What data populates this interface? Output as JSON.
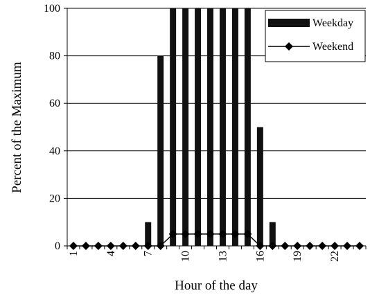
{
  "chart_data": {
    "type": "bar",
    "x_label": "Hour of the day",
    "y_label": "Percent of the Maximum",
    "categories": [
      1,
      null,
      null,
      4,
      null,
      null,
      7,
      null,
      null,
      10,
      null,
      null,
      13,
      null,
      null,
      16,
      null,
      null,
      19,
      null,
      null,
      22,
      null,
      null
    ],
    "series": [
      {
        "name": "Weekday",
        "type": "bar",
        "color": "#111111",
        "values": [
          0,
          0,
          0,
          0,
          0,
          0,
          10,
          80,
          100,
          100,
          100,
          100,
          100,
          100,
          100,
          50,
          10,
          0,
          0,
          0,
          0,
          0,
          0,
          0
        ]
      },
      {
        "name": "Weekend",
        "type": "line",
        "color": "#000000",
        "values": [
          0,
          0,
          0,
          0,
          0,
          0,
          0,
          0,
          5,
          5,
          5,
          5,
          5,
          5,
          5,
          0,
          0,
          0,
          0,
          0,
          0,
          0,
          0,
          0
        ]
      }
    ],
    "ylim": [
      0,
      100
    ],
    "yticks": [
      0,
      20,
      40,
      60,
      80,
      100
    ],
    "grid": true,
    "legend": "top-right"
  }
}
